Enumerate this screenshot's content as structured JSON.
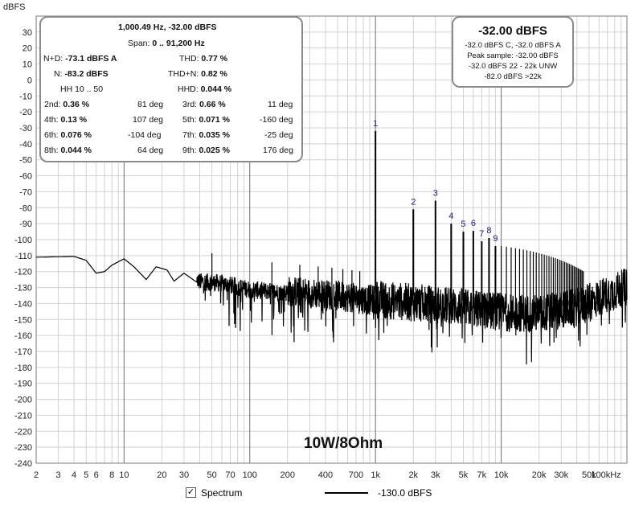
{
  "chart_data": {
    "type": "line",
    "ylabel": "dBFS",
    "xscale": "log",
    "xlim": [
      2,
      100000
    ],
    "ylim": [
      -240,
      40
    ],
    "x_ticks": [
      {
        "v": 2,
        "label": "2"
      },
      {
        "v": 3,
        "label": "3"
      },
      {
        "v": 4,
        "label": "4"
      },
      {
        "v": 5,
        "label": "5"
      },
      {
        "v": 6,
        "label": "6"
      },
      {
        "v": 8,
        "label": "8"
      },
      {
        "v": 10,
        "label": "10"
      },
      {
        "v": 20,
        "label": "20"
      },
      {
        "v": 30,
        "label": "30"
      },
      {
        "v": 50,
        "label": "50"
      },
      {
        "v": 70,
        "label": "70"
      },
      {
        "v": 100,
        "label": "100"
      },
      {
        "v": 200,
        "label": "200"
      },
      {
        "v": 400,
        "label": "400"
      },
      {
        "v": 700,
        "label": "700"
      },
      {
        "v": 1000,
        "label": "1k"
      },
      {
        "v": 2000,
        "label": "2k"
      },
      {
        "v": 3000,
        "label": "3k"
      },
      {
        "v": 5000,
        "label": "5k"
      },
      {
        "v": 7000,
        "label": "7k"
      },
      {
        "v": 10000,
        "label": "10k"
      },
      {
        "v": 20000,
        "label": "20k"
      },
      {
        "v": 30000,
        "label": "30k"
      },
      {
        "v": 50000,
        "label": "50k"
      },
      {
        "v": 100000,
        "label": "100kHz"
      }
    ],
    "y_ticks": [
      30,
      20,
      10,
      0,
      -10,
      -20,
      -30,
      -40,
      -50,
      -60,
      -70,
      -80,
      -90,
      -100,
      -110,
      -120,
      -130,
      -140,
      -150,
      -160,
      -170,
      -180,
      -190,
      -200,
      -210,
      -220,
      -230,
      -240
    ],
    "grid": true,
    "harmonics": [
      {
        "label": "1",
        "f": 1000,
        "level": -32
      },
      {
        "label": "2",
        "f": 2000,
        "level": -81
      },
      {
        "label": "3",
        "f": 3000,
        "level": -75.6
      },
      {
        "label": "4",
        "f": 4000,
        "level": -90
      },
      {
        "label": "5",
        "f": 5000,
        "level": -95
      },
      {
        "label": "6",
        "f": 6000,
        "level": -94.5
      },
      {
        "label": "7",
        "f": 7000,
        "level": -101
      },
      {
        "label": "8",
        "f": 8000,
        "level": -99
      },
      {
        "label": "9",
        "f": 9000,
        "level": -104
      }
    ],
    "series": [
      {
        "legend_label": "Spectrum",
        "legend_value": "-130.0 dBFS",
        "color": "#000000",
        "envelope": [
          {
            "f": 2,
            "v": -111
          },
          {
            "f": 4,
            "v": -110.5
          },
          {
            "f": 5,
            "v": -113
          },
          {
            "f": 6,
            "v": -121
          },
          {
            "f": 7,
            "v": -120
          },
          {
            "f": 8,
            "v": -116
          },
          {
            "f": 10,
            "v": -112
          },
          {
            "f": 12,
            "v": -117
          },
          {
            "f": 15,
            "v": -125
          },
          {
            "f": 18,
            "v": -117
          },
          {
            "f": 22,
            "v": -119
          },
          {
            "f": 25,
            "v": -126
          },
          {
            "f": 30,
            "v": -121
          },
          {
            "f": 40,
            "v": -128
          },
          {
            "f": 60,
            "v": -129
          },
          {
            "f": 100,
            "v": -133
          },
          {
            "f": 200,
            "v": -135
          },
          {
            "f": 500,
            "v": -138
          },
          {
            "f": 1000,
            "v": -141
          },
          {
            "f": 2000,
            "v": -143
          },
          {
            "f": 5000,
            "v": -146
          },
          {
            "f": 10000,
            "v": -149
          },
          {
            "f": 20000,
            "v": -150
          },
          {
            "f": 40000,
            "v": -146
          },
          {
            "f": 70000,
            "v": -138
          },
          {
            "f": 100000,
            "v": -133
          }
        ]
      }
    ]
  },
  "distortion_panel": {
    "freq_line": "1,000.49 Hz, -32.00 dBFS",
    "span_label": "Span:",
    "span_value": "0 .. 91,200 Hz",
    "nd_label": "N+D:",
    "nd_value": "-73.1 dBFS A",
    "thd_label": "THD:",
    "thd_value": "0.77 %",
    "n_label": "N:",
    "n_value": "-83.2 dBFS",
    "thdn_label": "THD+N:",
    "thdn_value": "0.82 %",
    "hh_label": "HH 10 .. 50",
    "hhd_label": "HHD:",
    "hhd_value": "0.044 %",
    "harmonics": [
      {
        "name": "2nd:",
        "pct": "0.36 %",
        "deg": "81 deg"
      },
      {
        "name": "3rd:",
        "pct": "0.66 %",
        "deg": "11 deg"
      },
      {
        "name": "4th:",
        "pct": "0.13 %",
        "deg": "107 deg"
      },
      {
        "name": "5th:",
        "pct": "0.071 %",
        "deg": "-160 deg"
      },
      {
        "name": "6th:",
        "pct": "0.076 %",
        "deg": "-104 deg"
      },
      {
        "name": "7th:",
        "pct": "0.035 %",
        "deg": "-25 deg"
      },
      {
        "name": "8th:",
        "pct": "0.044 %",
        "deg": "64 deg"
      },
      {
        "name": "9th:",
        "pct": "0.025 %",
        "deg": "176 deg"
      }
    ]
  },
  "level_panel": {
    "main": "-32.00 dBFS",
    "line1": "-32.0 dBFS C, -32.0 dBFS A",
    "line2": "Peak sample: -32.00 dBFS",
    "line3": "-32.0 dBFS 22 - 22k UNW",
    "line4": "-82.0 dBFS >22k"
  },
  "annotation": "10W/8Ohm",
  "legend": {
    "checkbox_label": "Spectrum",
    "checked": true,
    "checkbox_mark": "✓",
    "value": "-130.0 dBFS"
  }
}
